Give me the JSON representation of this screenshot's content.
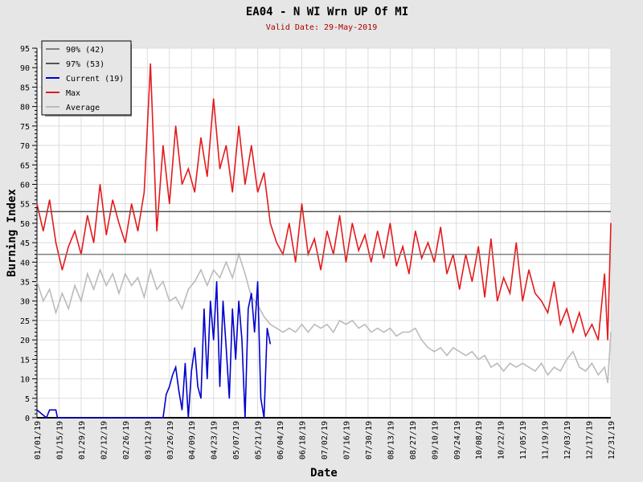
{
  "chart_data": {
    "type": "line",
    "title": "EA04 - N WI Wrn UP Of MI",
    "subtitle": "Valid Date: 29-May-2019",
    "xlabel": "Date",
    "ylabel": "Burning Index",
    "ylim": [
      0,
      95
    ],
    "xlim_days": [
      0,
      364
    ],
    "yticks": [
      0,
      5,
      10,
      15,
      20,
      25,
      30,
      35,
      40,
      45,
      50,
      55,
      60,
      65,
      70,
      75,
      80,
      85,
      90,
      95
    ],
    "xtick_labels": [
      "01/01/19",
      "01/15/19",
      "01/29/19",
      "02/12/19",
      "02/26/19",
      "03/12/19",
      "03/26/19",
      "04/09/19",
      "04/23/19",
      "05/07/19",
      "05/21/19",
      "06/04/19",
      "06/18/19",
      "07/02/19",
      "07/16/19",
      "07/30/19",
      "08/13/19",
      "08/27/19",
      "09/10/19",
      "09/24/19",
      "10/08/19",
      "10/22/19",
      "11/05/19",
      "11/19/19",
      "12/03/19",
      "12/17/19",
      "12/31/19"
    ],
    "grid": true,
    "legend_position": "top-left",
    "colors": {
      "p90": "#808080",
      "p97": "#555555",
      "current": "#0000cc",
      "max": "#e41a1c",
      "average": "#bbbbbb",
      "subtitle": "#aa0000"
    },
    "legend": [
      "90% (42)",
      "97% (53)",
      "Current (19)",
      "Max",
      "Average"
    ],
    "thresholds": {
      "p90": 42,
      "p97": 53
    },
    "series": [
      {
        "name": "Max",
        "x": [
          0,
          4,
          8,
          12,
          16,
          20,
          24,
          28,
          32,
          36,
          40,
          44,
          48,
          52,
          56,
          60,
          64,
          68,
          72,
          76,
          80,
          84,
          88,
          92,
          96,
          100,
          104,
          108,
          112,
          116,
          120,
          124,
          128,
          132,
          136,
          140,
          144,
          148,
          152,
          156,
          160,
          164,
          168,
          172,
          176,
          180,
          184,
          188,
          192,
          196,
          200,
          204,
          208,
          212,
          216,
          220,
          224,
          228,
          232,
          236,
          240,
          244,
          248,
          252,
          256,
          260,
          264,
          268,
          272,
          276,
          280,
          284,
          288,
          292,
          296,
          300,
          304,
          308,
          312,
          316,
          320,
          324,
          328,
          332,
          336,
          340,
          344,
          348,
          352,
          356,
          360,
          362,
          364
        ],
        "values": [
          55,
          48,
          56,
          45,
          38,
          44,
          48,
          42,
          52,
          45,
          60,
          47,
          56,
          50,
          45,
          55,
          48,
          58,
          91,
          48,
          70,
          55,
          75,
          60,
          64,
          58,
          72,
          62,
          82,
          64,
          70,
          58,
          75,
          60,
          70,
          58,
          63,
          50,
          45,
          42,
          50,
          40,
          55,
          42,
          46,
          38,
          48,
          42,
          52,
          40,
          50,
          43,
          47,
          40,
          48,
          41,
          50,
          39,
          44,
          37,
          48,
          41,
          45,
          40,
          49,
          37,
          42,
          33,
          42,
          35,
          44,
          31,
          46,
          30,
          36,
          32,
          45,
          30,
          38,
          32,
          30,
          27,
          35,
          24,
          28,
          22,
          27,
          21,
          24,
          20,
          37,
          20,
          50
        ]
      },
      {
        "name": "Average",
        "x": [
          0,
          4,
          8,
          12,
          16,
          20,
          24,
          28,
          32,
          36,
          40,
          44,
          48,
          52,
          56,
          60,
          64,
          68,
          72,
          76,
          80,
          84,
          88,
          92,
          96,
          100,
          104,
          108,
          112,
          116,
          120,
          124,
          128,
          132,
          136,
          140,
          144,
          148,
          152,
          156,
          160,
          164,
          168,
          172,
          176,
          180,
          184,
          188,
          192,
          196,
          200,
          204,
          208,
          212,
          216,
          220,
          224,
          228,
          232,
          236,
          240,
          244,
          248,
          252,
          256,
          260,
          264,
          268,
          272,
          276,
          280,
          284,
          288,
          292,
          296,
          300,
          304,
          308,
          312,
          316,
          320,
          324,
          328,
          332,
          336,
          340,
          344,
          348,
          352,
          356,
          360,
          362,
          364
        ],
        "values": [
          35,
          30,
          33,
          27,
          32,
          28,
          34,
          30,
          37,
          33,
          38,
          34,
          37,
          32,
          37,
          34,
          36,
          31,
          38,
          33,
          35,
          30,
          31,
          28,
          33,
          35,
          38,
          34,
          38,
          36,
          40,
          36,
          42,
          37,
          31,
          29,
          26,
          24,
          23,
          22,
          23,
          22,
          24,
          22,
          24,
          23,
          24,
          22,
          25,
          24,
          25,
          23,
          24,
          22,
          23,
          22,
          23,
          21,
          22,
          22,
          23,
          20,
          18,
          17,
          18,
          16,
          18,
          17,
          16,
          17,
          15,
          16,
          13,
          14,
          12,
          14,
          13,
          14,
          13,
          12,
          14,
          11,
          13,
          12,
          15,
          17,
          13,
          12,
          14,
          11,
          13,
          9,
          22
        ]
      },
      {
        "name": "Current",
        "x": [
          0,
          3,
          6,
          8,
          10,
          12,
          13,
          80,
          82,
          84,
          86,
          88,
          90,
          92,
          94,
          96,
          98,
          100,
          102,
          104,
          106,
          108,
          110,
          112,
          114,
          116,
          118,
          120,
          122,
          124,
          126,
          128,
          130,
          132,
          134,
          136,
          138,
          140,
          142,
          144,
          146,
          148
        ],
        "values": [
          2,
          1,
          0,
          2,
          2,
          2,
          0,
          0,
          6,
          8,
          11,
          13,
          7,
          2,
          14,
          0,
          12,
          18,
          8,
          5,
          28,
          10,
          30,
          20,
          35,
          8,
          30,
          18,
          5,
          28,
          15,
          30,
          20,
          0,
          28,
          32,
          22,
          35,
          5,
          0,
          23,
          19
        ]
      }
    ]
  }
}
